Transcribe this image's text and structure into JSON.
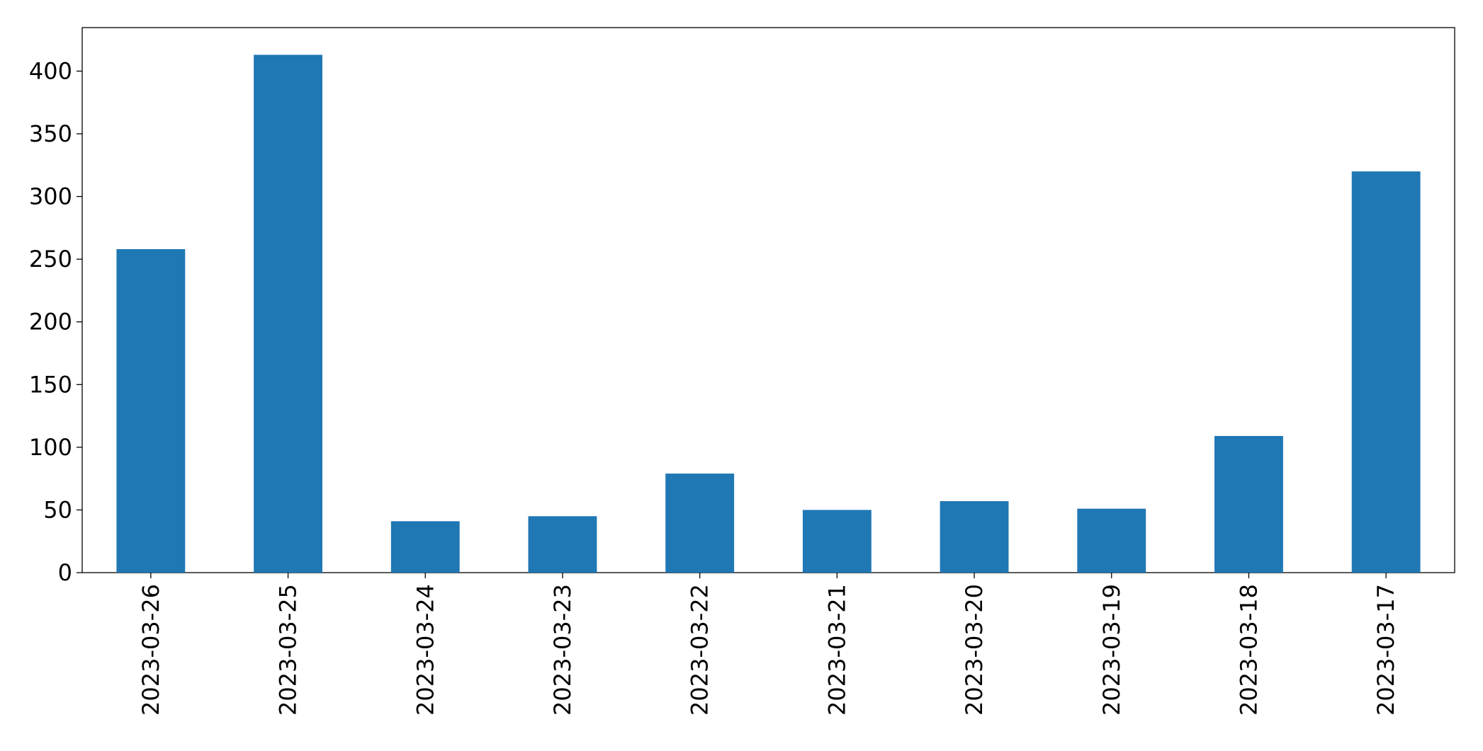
{
  "chart_data": {
    "type": "bar",
    "categories": [
      "2023-03-26",
      "2023-03-25",
      "2023-03-24",
      "2023-03-23",
      "2023-03-22",
      "2023-03-21",
      "2023-03-20",
      "2023-03-19",
      "2023-03-18",
      "2023-03-17"
    ],
    "values": [
      258,
      413,
      41,
      45,
      79,
      50,
      57,
      51,
      109,
      320
    ],
    "color": "#1f77b4",
    "ylim": [
      0,
      434.7
    ],
    "yticks": [
      0,
      50,
      100,
      150,
      200,
      250,
      300,
      350,
      400
    ],
    "grid": false
  }
}
